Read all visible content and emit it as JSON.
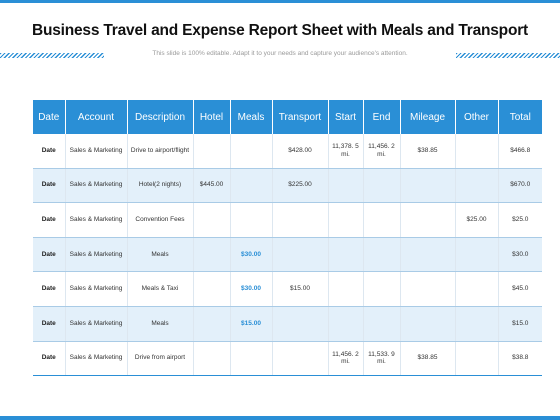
{
  "title": "Business Travel and Expense Report Sheet with Meals and Transport",
  "subtitle": "This slide is 100% editable. Adapt it to your needs and capture your audience's attention.",
  "colors": {
    "accent": "#2a8fd6",
    "row_alt": "#e3f0fa"
  },
  "table": {
    "headers": [
      "Date",
      "Account",
      "Description",
      "Hotel",
      "Meals",
      "Transport",
      "Start",
      "End",
      "Mileage",
      "Other",
      "Total"
    ],
    "rows": [
      [
        "Date",
        "Sales & Marketing",
        "Drive to airport/flight",
        "",
        "",
        "$428.00",
        "11,378. 5 mi.",
        "11,456. 2 mi.",
        "$38.85",
        "",
        "$466.8"
      ],
      [
        "Date",
        "Sales & Marketing",
        "Hotel(2 nights)",
        "$445.00",
        "",
        "$225.00",
        "",
        "",
        "",
        "",
        "$670.0"
      ],
      [
        "Date",
        "Sales & Marketing",
        "Convention Fees",
        "",
        "",
        "",
        "",
        "",
        "",
        "$25.00",
        "$25.0"
      ],
      [
        "Date",
        "Sales & Marketing",
        "Meals",
        "",
        "$30.00",
        "",
        "",
        "",
        "",
        "",
        "$30.0"
      ],
      [
        "Date",
        "Sales & Marketing",
        "Meals & Taxi",
        "",
        "$30.00",
        "$15.00",
        "",
        "",
        "",
        "",
        "$45.0"
      ],
      [
        "Date",
        "Sales & Marketing",
        "Meals",
        "",
        "$15.00",
        "",
        "",
        "",
        "",
        "",
        "$15.0"
      ],
      [
        "Date",
        "Sales & Marketing",
        "Drive from airport",
        "",
        "",
        "",
        "11,456. 2 mi.",
        "11,533. 9 mi.",
        "$38.85",
        "",
        "$38.8"
      ]
    ]
  }
}
